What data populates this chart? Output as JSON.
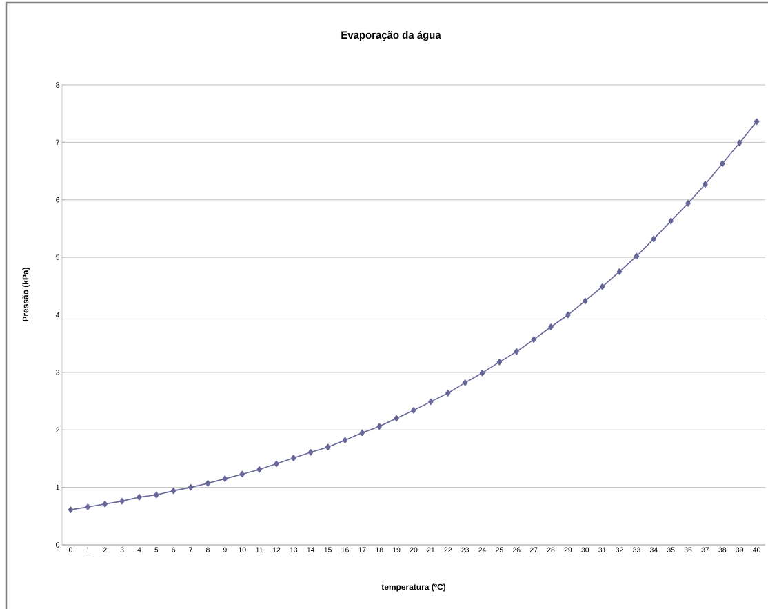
{
  "chart_data": {
    "type": "line",
    "title": "Evaporação da água",
    "xlabel": "temperatura (ºC)",
    "ylabel": "Pressão (kPa)",
    "categories": [
      "0",
      "1",
      "2",
      "3",
      "4",
      "5",
      "6",
      "7",
      "8",
      "9",
      "10",
      "11",
      "12",
      "13",
      "14",
      "15",
      "16",
      "17",
      "18",
      "19",
      "20",
      "21",
      "22",
      "23",
      "24",
      "25",
      "26",
      "27",
      "28",
      "29",
      "30",
      "31",
      "32",
      "33",
      "34",
      "35",
      "36",
      "37",
      "38",
      "39",
      "40"
    ],
    "series": [
      {
        "color": "#666699",
        "values": [
          0.61,
          0.66,
          0.71,
          0.76,
          0.83,
          0.87,
          0.94,
          1.0,
          1.07,
          1.15,
          1.23,
          1.31,
          1.41,
          1.51,
          1.61,
          1.7,
          1.82,
          1.95,
          2.06,
          2.2,
          2.34,
          2.49,
          2.64,
          2.82,
          2.99,
          3.18,
          3.36,
          3.57,
          3.79,
          4.0,
          4.24,
          4.49,
          4.75,
          5.02,
          5.32,
          5.63,
          5.94,
          6.27,
          6.63,
          6.99,
          7.36
        ]
      }
    ],
    "ylim": [
      0,
      8
    ],
    "yticks": [
      0,
      1,
      2,
      3,
      4,
      5,
      6,
      7,
      8
    ],
    "grid": "y",
    "marker": "diamond",
    "line_style": "solid"
  }
}
